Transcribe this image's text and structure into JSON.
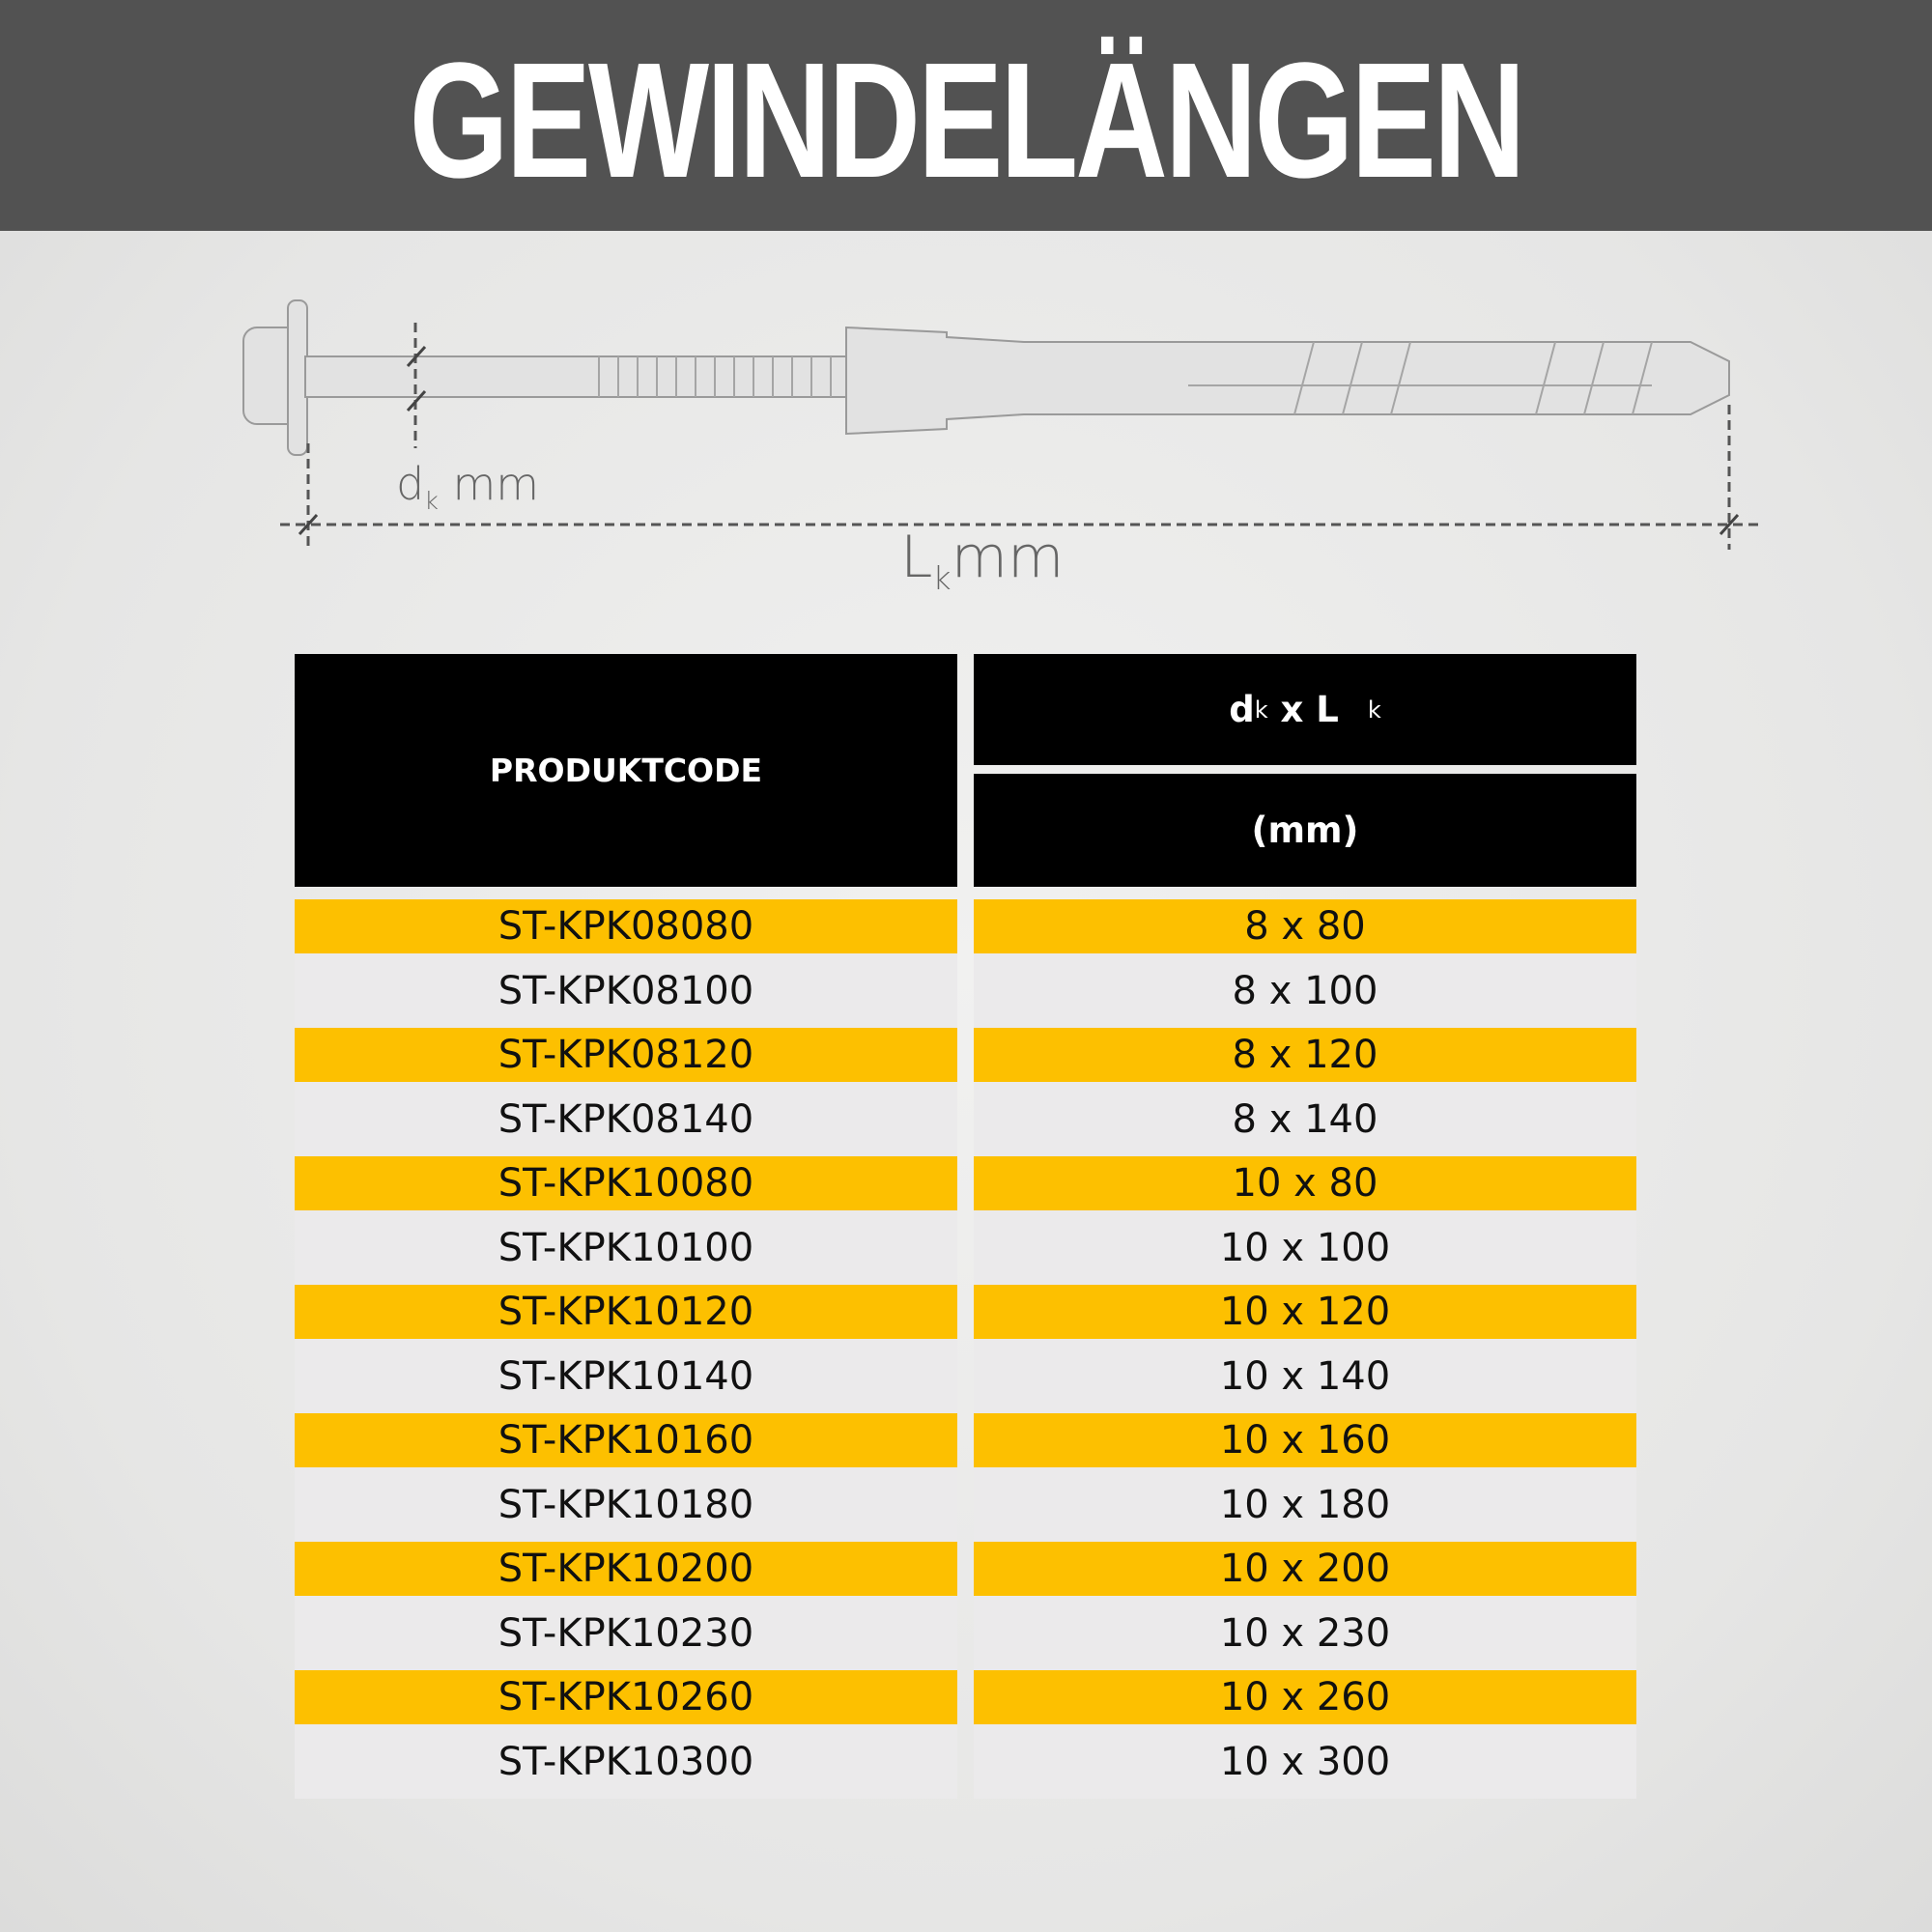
{
  "title": "GEWINDELÄNGEN",
  "drawing": {
    "d_label": "d",
    "d_sub": "k",
    "d_unit": "mm",
    "l_label": "L",
    "l_sub": "k",
    "l_unit": "mm"
  },
  "table": {
    "col1_header": "PRODUKTCODE",
    "col2_header_main": "d",
    "col2_header_sub1": "k",
    "col2_header_mid": " x L",
    "col2_header_sub2": "k",
    "col2_header_unit": "(mm)",
    "rows": [
      {
        "code": "ST-KPK08080",
        "size": "8 x 80"
      },
      {
        "code": "ST-KPK08100",
        "size": "8 x 100"
      },
      {
        "code": "ST-KPK08120",
        "size": "8 x 120"
      },
      {
        "code": "ST-KPK08140",
        "size": "8 x 140"
      },
      {
        "code": "ST-KPK10080",
        "size": "10 x 80"
      },
      {
        "code": "ST-KPK10100",
        "size": "10 x 100"
      },
      {
        "code": "ST-KPK10120",
        "size": "10 x 120"
      },
      {
        "code": "ST-KPK10140",
        "size": "10 x 140"
      },
      {
        "code": "ST-KPK10160",
        "size": "10 x 160"
      },
      {
        "code": "ST-KPK10180",
        "size": "10 x 180"
      },
      {
        "code": "ST-KPK10200",
        "size": "10 x 200"
      },
      {
        "code": "ST-KPK10230",
        "size": "10 x 230"
      },
      {
        "code": "ST-KPK10260",
        "size": "10 x 260"
      },
      {
        "code": "ST-KPK10300",
        "size": "10 x 300"
      }
    ],
    "colors": {
      "highlight": "#fdc000",
      "plain": "#ebeaeb",
      "header": "#000000"
    }
  }
}
